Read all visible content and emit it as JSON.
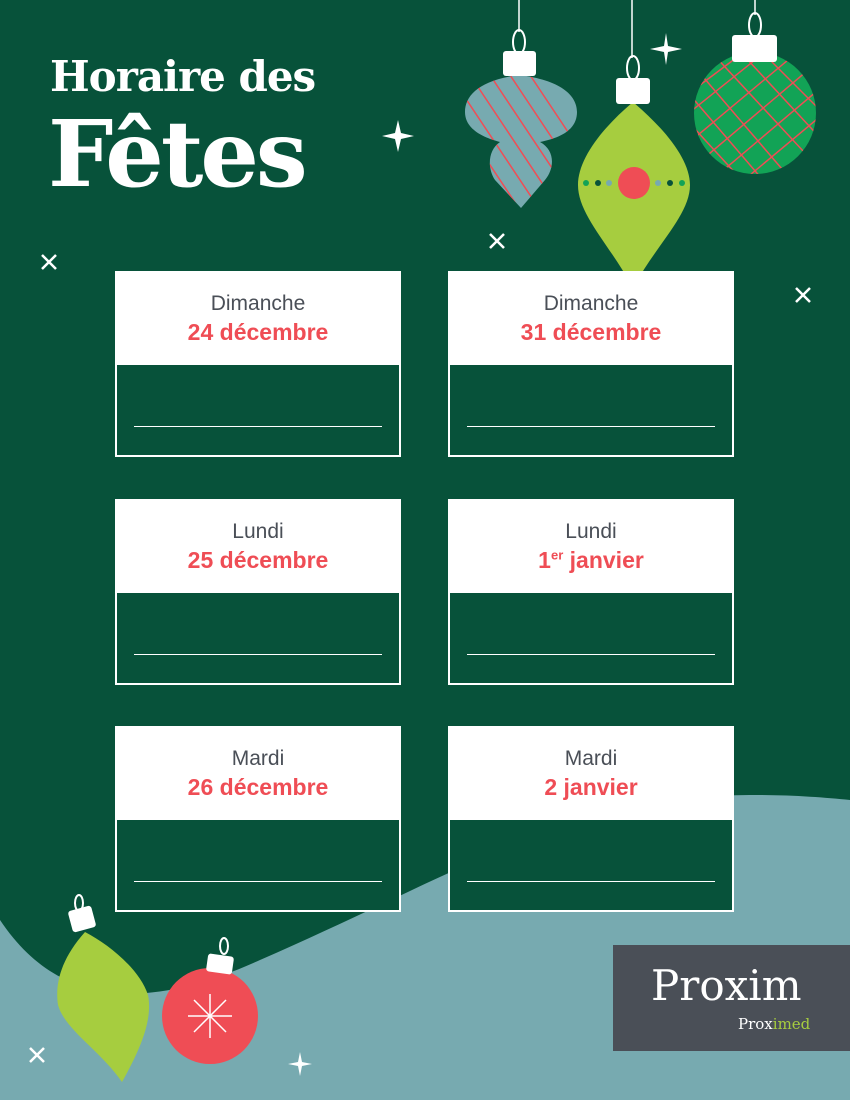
{
  "header": {
    "line1": "Horaire des",
    "line2": "Fêtes"
  },
  "schedule": [
    {
      "day": "Dimanche",
      "date": "24 décembre",
      "hours": ""
    },
    {
      "day": "Dimanche",
      "date": "31 décembre",
      "hours": ""
    },
    {
      "day": "Lundi",
      "date": "25 décembre",
      "hours": ""
    },
    {
      "day": "Lundi",
      "date_num": "1",
      "date_sup": "er",
      "date_rest": " janvier",
      "hours": ""
    },
    {
      "day": "Mardi",
      "date": "26 décembre",
      "hours": ""
    },
    {
      "day": "Mardi",
      "date": "2 janvier",
      "hours": ""
    }
  ],
  "logo": {
    "brand": "Proxim",
    "sub_brand_a": "Prox",
    "sub_brand_b": "imed"
  },
  "colors": {
    "background": "#07523a",
    "accent_red": "#ef4d55",
    "lime": "#a6cd3f",
    "teal": "#77aab0",
    "logo_box": "#4a4f57"
  },
  "decorations": [
    "ornament-teal-striped",
    "ornament-lime-drop",
    "ornament-green-plaid",
    "ornament-red-ball",
    "sparkle-icons"
  ]
}
